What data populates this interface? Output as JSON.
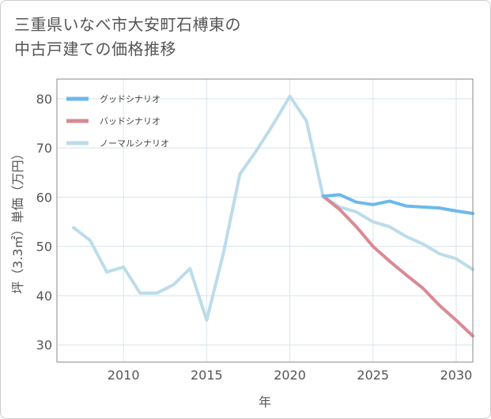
{
  "title": "三重県いなべ市大安町石榑東の\n中古戸建ての価格推移",
  "chart_data": {
    "type": "line",
    "title": "三重県いなべ市大安町石榑東の中古戸建ての価格推移",
    "xlabel": "年",
    "ylabel": "坪（3.3㎡）単価（万円）",
    "xlim": [
      2006,
      2031
    ],
    "ylim": [
      26.5,
      84
    ],
    "xticks": [
      2010,
      2015,
      2020,
      2025,
      2030
    ],
    "yticks": [
      30,
      40,
      50,
      60,
      70,
      80
    ],
    "grid": true,
    "legend_position": "top-left",
    "series": [
      {
        "name": "グッドシナリオ",
        "color": "#6cb8ec",
        "x": [
          2022,
          2023,
          2024,
          2025,
          2026,
          2027,
          2028,
          2029,
          2030,
          2031
        ],
        "values": [
          60.2,
          60.5,
          59.0,
          58.5,
          59.2,
          58.2,
          58.0,
          57.8,
          57.2,
          56.7
        ]
      },
      {
        "name": "バッドシナリオ",
        "color": "#d98a94",
        "x": [
          2022,
          2023,
          2024,
          2025,
          2026,
          2027,
          2028,
          2029,
          2030,
          2031
        ],
        "values": [
          60.2,
          57.5,
          54.0,
          50.0,
          47.0,
          44.2,
          41.5,
          38.0,
          35.0,
          31.8
        ]
      },
      {
        "name": "ノーマルシナリオ",
        "color": "#bcdcea",
        "x": [
          2007,
          2008,
          2009,
          2010,
          2011,
          2012,
          2013,
          2014,
          2015,
          2016,
          2017,
          2018,
          2019,
          2020,
          2021,
          2022,
          2023,
          2024,
          2025,
          2026,
          2027,
          2028,
          2029,
          2030,
          2031
        ],
        "values": [
          53.8,
          51.2,
          44.8,
          45.8,
          40.5,
          40.5,
          42.2,
          45.5,
          35.0,
          48.5,
          64.7,
          69.5,
          74.8,
          80.5,
          75.5,
          60.2,
          58.0,
          57.0,
          55.0,
          54.0,
          52.0,
          50.5,
          48.5,
          47.5,
          45.3
        ]
      }
    ]
  }
}
